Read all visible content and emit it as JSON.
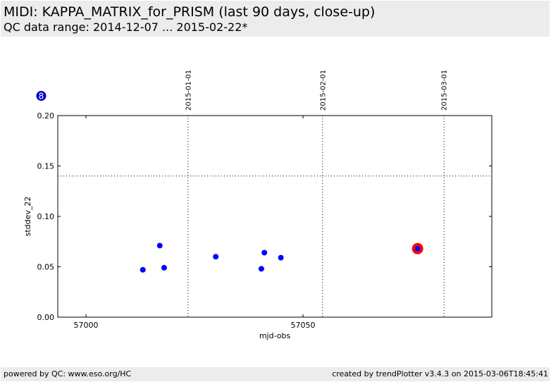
{
  "header": {
    "title": "MIDI: KAPPA_MATRIX_for_PRISM (last 90 days, close-up)",
    "subtitle": "QC data range: 2014-12-07 ... 2015-02-22*"
  },
  "footer": {
    "left": "powered by QC: www.eso.org/HC",
    "right": "created by trendPlotter v3.4.3 on 2015-03-06T18:45:41"
  },
  "badge": {
    "label": "8",
    "color": "#0000cc"
  },
  "chart_data": {
    "type": "scatter",
    "xlabel": "mjd-obs",
    "ylabel": "stddev_22",
    "xlim": [
      56993.5,
      57093.5
    ],
    "ylim": [
      0.0,
      0.2
    ],
    "xticks": [
      {
        "value": 57000,
        "label": "57000"
      },
      {
        "value": 57050,
        "label": "57050"
      }
    ],
    "yticks": [
      {
        "value": 0.0,
        "label": "0.00"
      },
      {
        "value": 0.05,
        "label": "0.05"
      },
      {
        "value": 0.1,
        "label": "0.10"
      },
      {
        "value": 0.15,
        "label": "0.15"
      },
      {
        "value": 0.2,
        "label": "0.20"
      }
    ],
    "date_markers": [
      {
        "x": 57023.5,
        "label": "2015-01-01"
      },
      {
        "x": 57054.5,
        "label": "2015-02-01"
      },
      {
        "x": 57082.5,
        "label": "2015-03-01"
      }
    ],
    "reference_line_y": 0.14,
    "point_color": "#0000ff",
    "highlight_color": "#ff0000",
    "points": [
      {
        "x": 57013.1,
        "y": 0.047
      },
      {
        "x": 57017.0,
        "y": 0.071
      },
      {
        "x": 57018.0,
        "y": 0.049
      },
      {
        "x": 57029.9,
        "y": 0.06
      },
      {
        "x": 57040.4,
        "y": 0.048
      },
      {
        "x": 57041.1,
        "y": 0.064
      },
      {
        "x": 57044.9,
        "y": 0.059
      },
      {
        "x": 57076.4,
        "y": 0.068,
        "highlight": true
      }
    ]
  }
}
